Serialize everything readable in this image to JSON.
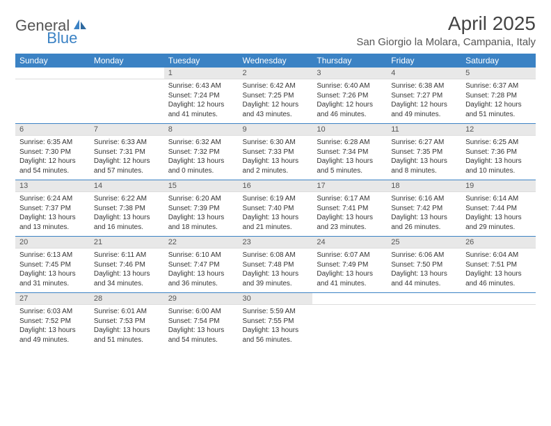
{
  "brand": {
    "general": "General",
    "blue": "Blue"
  },
  "title": "April 2025",
  "location": "San Giorgio la Molara, Campania, Italy",
  "headers": [
    "Sunday",
    "Monday",
    "Tuesday",
    "Wednesday",
    "Thursday",
    "Friday",
    "Saturday"
  ],
  "colors": {
    "accent": "#3b82c4",
    "header_text": "#ffffff",
    "daynum_bg": "#e8e8e8",
    "text": "#333333",
    "title_text": "#444444"
  },
  "typography": {
    "title_fontsize": 28,
    "location_fontsize": 15,
    "header_fontsize": 12,
    "daynum_fontsize": 11,
    "body_fontsize": 10
  },
  "layout": {
    "first_day_column_index": 2,
    "days_in_month": 30,
    "columns": 7,
    "rows": 5
  },
  "days": [
    {
      "n": "1",
      "sunrise": "6:43 AM",
      "sunset": "7:24 PM",
      "daylight": "12 hours and 41 minutes."
    },
    {
      "n": "2",
      "sunrise": "6:42 AM",
      "sunset": "7:25 PM",
      "daylight": "12 hours and 43 minutes."
    },
    {
      "n": "3",
      "sunrise": "6:40 AM",
      "sunset": "7:26 PM",
      "daylight": "12 hours and 46 minutes."
    },
    {
      "n": "4",
      "sunrise": "6:38 AM",
      "sunset": "7:27 PM",
      "daylight": "12 hours and 49 minutes."
    },
    {
      "n": "5",
      "sunrise": "6:37 AM",
      "sunset": "7:28 PM",
      "daylight": "12 hours and 51 minutes."
    },
    {
      "n": "6",
      "sunrise": "6:35 AM",
      "sunset": "7:30 PM",
      "daylight": "12 hours and 54 minutes."
    },
    {
      "n": "7",
      "sunrise": "6:33 AM",
      "sunset": "7:31 PM",
      "daylight": "12 hours and 57 minutes."
    },
    {
      "n": "8",
      "sunrise": "6:32 AM",
      "sunset": "7:32 PM",
      "daylight": "13 hours and 0 minutes."
    },
    {
      "n": "9",
      "sunrise": "6:30 AM",
      "sunset": "7:33 PM",
      "daylight": "13 hours and 2 minutes."
    },
    {
      "n": "10",
      "sunrise": "6:28 AM",
      "sunset": "7:34 PM",
      "daylight": "13 hours and 5 minutes."
    },
    {
      "n": "11",
      "sunrise": "6:27 AM",
      "sunset": "7:35 PM",
      "daylight": "13 hours and 8 minutes."
    },
    {
      "n": "12",
      "sunrise": "6:25 AM",
      "sunset": "7:36 PM",
      "daylight": "13 hours and 10 minutes."
    },
    {
      "n": "13",
      "sunrise": "6:24 AM",
      "sunset": "7:37 PM",
      "daylight": "13 hours and 13 minutes."
    },
    {
      "n": "14",
      "sunrise": "6:22 AM",
      "sunset": "7:38 PM",
      "daylight": "13 hours and 16 minutes."
    },
    {
      "n": "15",
      "sunrise": "6:20 AM",
      "sunset": "7:39 PM",
      "daylight": "13 hours and 18 minutes."
    },
    {
      "n": "16",
      "sunrise": "6:19 AM",
      "sunset": "7:40 PM",
      "daylight": "13 hours and 21 minutes."
    },
    {
      "n": "17",
      "sunrise": "6:17 AM",
      "sunset": "7:41 PM",
      "daylight": "13 hours and 23 minutes."
    },
    {
      "n": "18",
      "sunrise": "6:16 AM",
      "sunset": "7:42 PM",
      "daylight": "13 hours and 26 minutes."
    },
    {
      "n": "19",
      "sunrise": "6:14 AM",
      "sunset": "7:44 PM",
      "daylight": "13 hours and 29 minutes."
    },
    {
      "n": "20",
      "sunrise": "6:13 AM",
      "sunset": "7:45 PM",
      "daylight": "13 hours and 31 minutes."
    },
    {
      "n": "21",
      "sunrise": "6:11 AM",
      "sunset": "7:46 PM",
      "daylight": "13 hours and 34 minutes."
    },
    {
      "n": "22",
      "sunrise": "6:10 AM",
      "sunset": "7:47 PM",
      "daylight": "13 hours and 36 minutes."
    },
    {
      "n": "23",
      "sunrise": "6:08 AM",
      "sunset": "7:48 PM",
      "daylight": "13 hours and 39 minutes."
    },
    {
      "n": "24",
      "sunrise": "6:07 AM",
      "sunset": "7:49 PM",
      "daylight": "13 hours and 41 minutes."
    },
    {
      "n": "25",
      "sunrise": "6:06 AM",
      "sunset": "7:50 PM",
      "daylight": "13 hours and 44 minutes."
    },
    {
      "n": "26",
      "sunrise": "6:04 AM",
      "sunset": "7:51 PM",
      "daylight": "13 hours and 46 minutes."
    },
    {
      "n": "27",
      "sunrise": "6:03 AM",
      "sunset": "7:52 PM",
      "daylight": "13 hours and 49 minutes."
    },
    {
      "n": "28",
      "sunrise": "6:01 AM",
      "sunset": "7:53 PM",
      "daylight": "13 hours and 51 minutes."
    },
    {
      "n": "29",
      "sunrise": "6:00 AM",
      "sunset": "7:54 PM",
      "daylight": "13 hours and 54 minutes."
    },
    {
      "n": "30",
      "sunrise": "5:59 AM",
      "sunset": "7:55 PM",
      "daylight": "13 hours and 56 minutes."
    }
  ],
  "labels": {
    "sunrise_prefix": "Sunrise: ",
    "sunset_prefix": "Sunset: ",
    "daylight_prefix": "Daylight: "
  }
}
